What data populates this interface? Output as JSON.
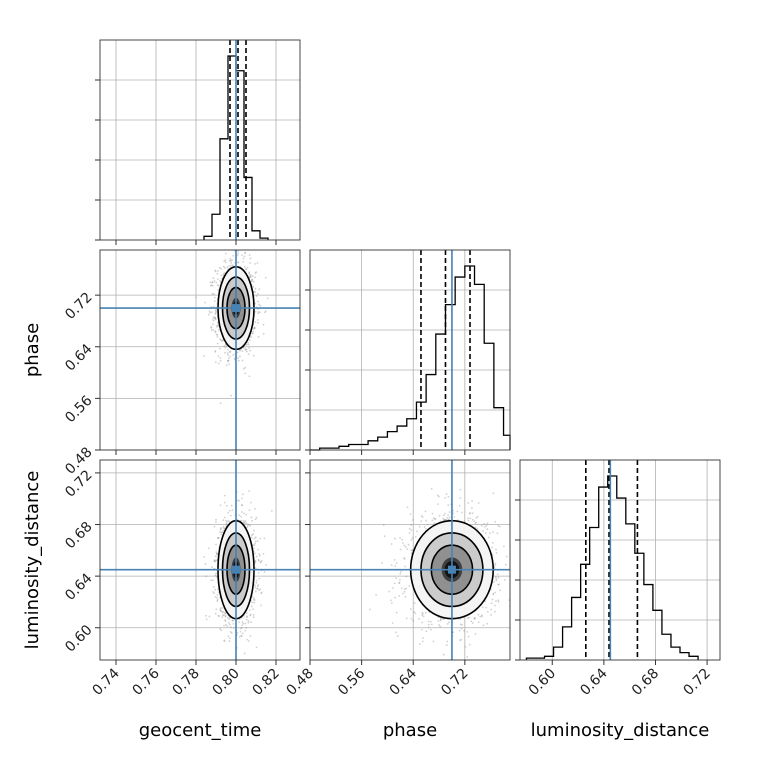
{
  "chart_data": {
    "type": "corner",
    "parameters": [
      "geocent_time",
      "phase",
      "luminosity_distance"
    ],
    "truths": {
      "geocent_time": 0.8,
      "phase": 0.7,
      "luminosity_distance": 0.645
    },
    "axis_labels": {
      "x": [
        "geocent_time",
        "phase",
        "luminosity_distance"
      ],
      "y": [
        "phase",
        "luminosity_distance"
      ]
    },
    "ranges": {
      "geocent_time": [
        0.732,
        0.832
      ],
      "phase": [
        0.48,
        0.79
      ],
      "luminosity_distance": [
        0.575,
        0.73
      ]
    },
    "ticks": {
      "geocent_time": [
        "0.74",
        "0.76",
        "0.78",
        "0.80",
        "0.82"
      ],
      "phase": [
        "0.48",
        "0.56",
        "0.64",
        "0.72"
      ],
      "luminosity_distance": [
        "0.60",
        "0.64",
        "0.68",
        "0.72"
      ]
    },
    "quantiles": {
      "geocent_time": [
        0.797,
        0.801,
        0.805
      ],
      "phase": [
        0.652,
        0.69,
        0.728
      ],
      "luminosity_distance": [
        0.626,
        0.644,
        0.666
      ]
    },
    "histograms": {
      "geocent_time": {
        "edges": [
          0.784,
          0.788,
          0.792,
          0.796,
          0.8,
          0.804,
          0.808,
          0.812,
          0.816
        ],
        "counts": [
          0.02,
          0.14,
          0.55,
          1.0,
          0.92,
          0.34,
          0.05,
          0.01
        ]
      },
      "phase": {
        "edges": [
          0.48,
          0.495,
          0.51,
          0.525,
          0.54,
          0.555,
          0.57,
          0.585,
          0.6,
          0.615,
          0.63,
          0.645,
          0.66,
          0.675,
          0.69,
          0.705,
          0.72,
          0.735,
          0.75,
          0.765,
          0.78,
          0.795
        ],
        "counts": [
          0.0,
          0.01,
          0.01,
          0.02,
          0.03,
          0.03,
          0.05,
          0.07,
          0.1,
          0.13,
          0.17,
          0.26,
          0.41,
          0.63,
          0.79,
          0.94,
          1.0,
          0.9,
          0.58,
          0.23,
          0.08
        ]
      },
      "luminosity_distance": {
        "edges": [
          0.58,
          0.587,
          0.594,
          0.601,
          0.608,
          0.615,
          0.622,
          0.629,
          0.636,
          0.643,
          0.65,
          0.657,
          0.664,
          0.671,
          0.678,
          0.685,
          0.692,
          0.699,
          0.706,
          0.713
        ],
        "counts": [
          0.01,
          0.01,
          0.02,
          0.07,
          0.18,
          0.34,
          0.52,
          0.72,
          0.94,
          1.0,
          0.88,
          0.74,
          0.58,
          0.41,
          0.27,
          0.14,
          0.07,
          0.04,
          0.02
        ]
      }
    },
    "colors": {
      "truth": "#4682b4",
      "hist": "#000000",
      "grid": "#b0b0b0",
      "scatter": "#7a7a7a"
    }
  }
}
